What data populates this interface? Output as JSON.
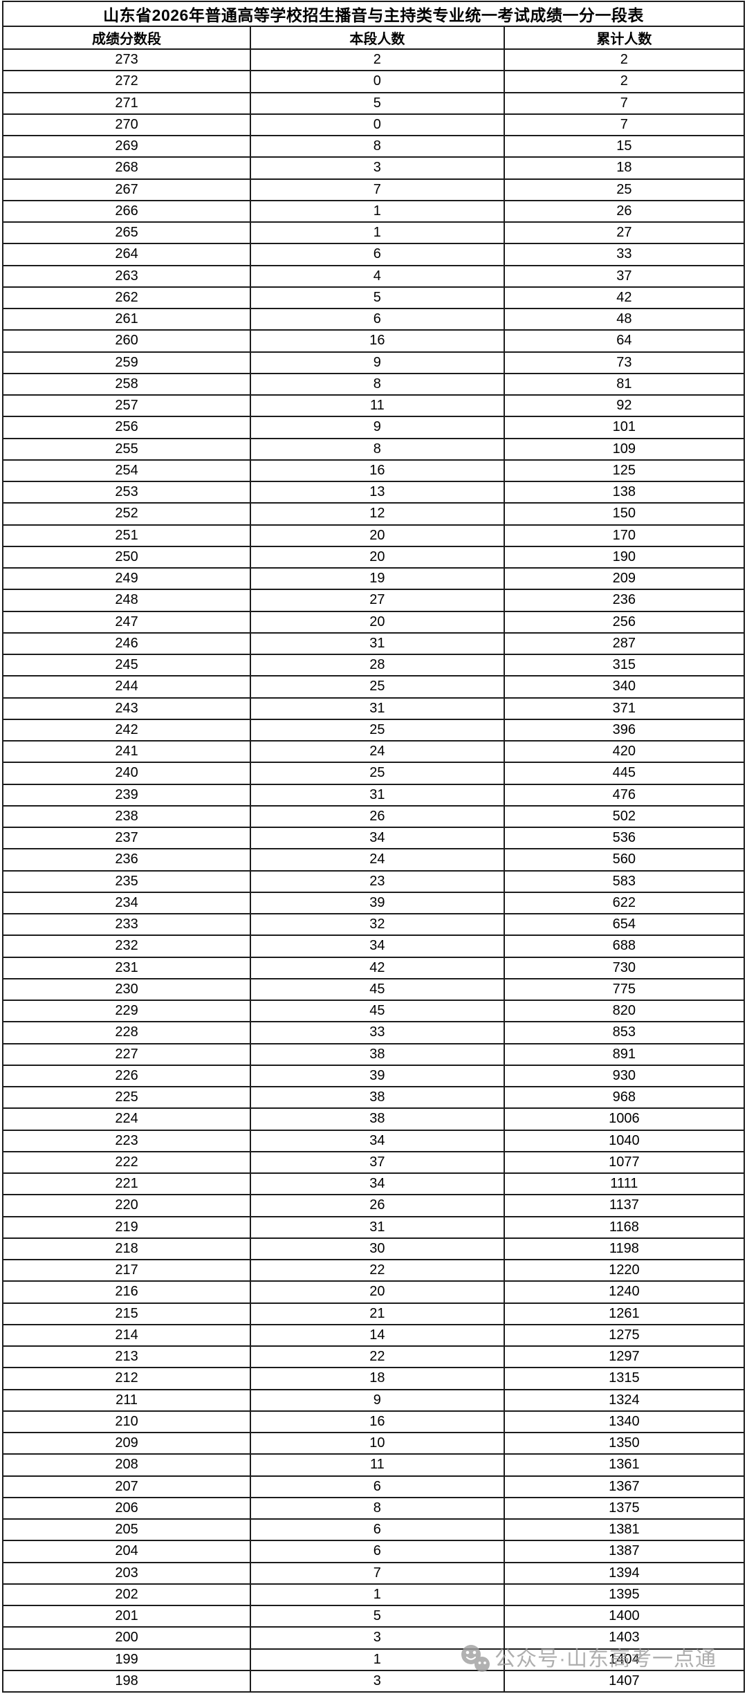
{
  "chart_data": {
    "type": "table",
    "title": "山东省2026年普通高等学校招生播音与主持类专业统一考试成绩一分一段表",
    "columns": [
      "成绩分数段",
      "本段人数",
      "累计人数"
    ],
    "rows": [
      [
        273,
        2,
        2
      ],
      [
        272,
        0,
        2
      ],
      [
        271,
        5,
        7
      ],
      [
        270,
        0,
        7
      ],
      [
        269,
        8,
        15
      ],
      [
        268,
        3,
        18
      ],
      [
        267,
        7,
        25
      ],
      [
        266,
        1,
        26
      ],
      [
        265,
        1,
        27
      ],
      [
        264,
        6,
        33
      ],
      [
        263,
        4,
        37
      ],
      [
        262,
        5,
        42
      ],
      [
        261,
        6,
        48
      ],
      [
        260,
        16,
        64
      ],
      [
        259,
        9,
        73
      ],
      [
        258,
        8,
        81
      ],
      [
        257,
        11,
        92
      ],
      [
        256,
        9,
        101
      ],
      [
        255,
        8,
        109
      ],
      [
        254,
        16,
        125
      ],
      [
        253,
        13,
        138
      ],
      [
        252,
        12,
        150
      ],
      [
        251,
        20,
        170
      ],
      [
        250,
        20,
        190
      ],
      [
        249,
        19,
        209
      ],
      [
        248,
        27,
        236
      ],
      [
        247,
        20,
        256
      ],
      [
        246,
        31,
        287
      ],
      [
        245,
        28,
        315
      ],
      [
        244,
        25,
        340
      ],
      [
        243,
        31,
        371
      ],
      [
        242,
        25,
        396
      ],
      [
        241,
        24,
        420
      ],
      [
        240,
        25,
        445
      ],
      [
        239,
        31,
        476
      ],
      [
        238,
        26,
        502
      ],
      [
        237,
        34,
        536
      ],
      [
        236,
        24,
        560
      ],
      [
        235,
        23,
        583
      ],
      [
        234,
        39,
        622
      ],
      [
        233,
        32,
        654
      ],
      [
        232,
        34,
        688
      ],
      [
        231,
        42,
        730
      ],
      [
        230,
        45,
        775
      ],
      [
        229,
        45,
        820
      ],
      [
        228,
        33,
        853
      ],
      [
        227,
        38,
        891
      ],
      [
        226,
        39,
        930
      ],
      [
        225,
        38,
        968
      ],
      [
        224,
        38,
        1006
      ],
      [
        223,
        34,
        1040
      ],
      [
        222,
        37,
        1077
      ],
      [
        221,
        34,
        1111
      ],
      [
        220,
        26,
        1137
      ],
      [
        219,
        31,
        1168
      ],
      [
        218,
        30,
        1198
      ],
      [
        217,
        22,
        1220
      ],
      [
        216,
        20,
        1240
      ],
      [
        215,
        21,
        1261
      ],
      [
        214,
        14,
        1275
      ],
      [
        213,
        22,
        1297
      ],
      [
        212,
        18,
        1315
      ],
      [
        211,
        9,
        1324
      ],
      [
        210,
        16,
        1340
      ],
      [
        209,
        10,
        1350
      ],
      [
        208,
        11,
        1361
      ],
      [
        207,
        6,
        1367
      ],
      [
        206,
        8,
        1375
      ],
      [
        205,
        6,
        1381
      ],
      [
        204,
        6,
        1387
      ],
      [
        203,
        7,
        1394
      ],
      [
        202,
        1,
        1395
      ],
      [
        201,
        5,
        1400
      ],
      [
        200,
        3,
        1403
      ],
      [
        199,
        1,
        1404
      ],
      [
        198,
        3,
        1407
      ]
    ],
    "layout": {
      "grid": "on",
      "border_color": "#1c1c1c",
      "background": "#ffffff",
      "text_color": "#000000"
    }
  },
  "watermark": {
    "text": "公众号·山东高考一点通",
    "color": "#9d9d9d",
    "icon": "wechat-icon"
  }
}
